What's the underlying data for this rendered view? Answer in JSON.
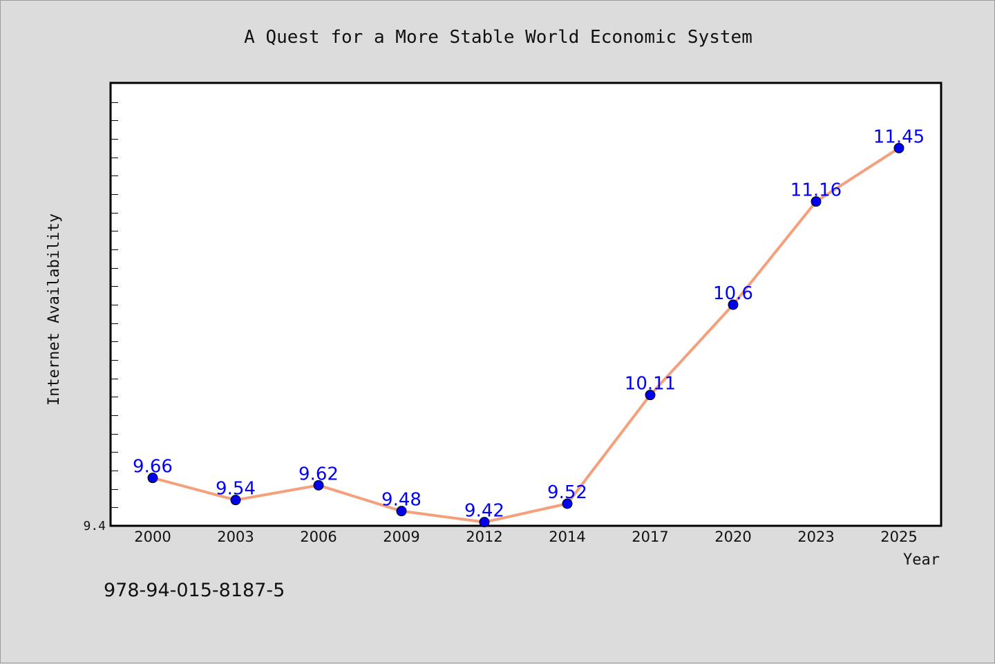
{
  "page": {
    "isbn_caption": "978-94-015-8187-5"
  },
  "chart_data": {
    "type": "line",
    "title": "A Quest for a More Stable World Economic System",
    "xlabel": "Year",
    "ylabel": "Internet Availability",
    "categories": [
      "2000",
      "2003",
      "2006",
      "2009",
      "2012",
      "2014",
      "2017",
      "2020",
      "2023",
      "2025"
    ],
    "series": [
      {
        "values": [
          9.66,
          9.54,
          9.62,
          9.48,
          9.42,
          9.52,
          10.11,
          10.6,
          11.16,
          11.45
        ]
      }
    ],
    "data_labels": [
      "9.66",
      "9.54",
      "9.62",
      "9.48",
      "9.42",
      "9.52",
      "10.11",
      "10.6",
      "11.16",
      "11.45"
    ],
    "y_tick_labels": [
      "9.4"
    ],
    "ylim": [
      9.4,
      11.8
    ],
    "grid": false,
    "legend": "none",
    "colors": {
      "line": "#f4a07c",
      "marker": "#0000ee",
      "data_label": "#0000ff",
      "plot_bg": "#ffffff",
      "page_bg": "#dcdcdc"
    }
  }
}
